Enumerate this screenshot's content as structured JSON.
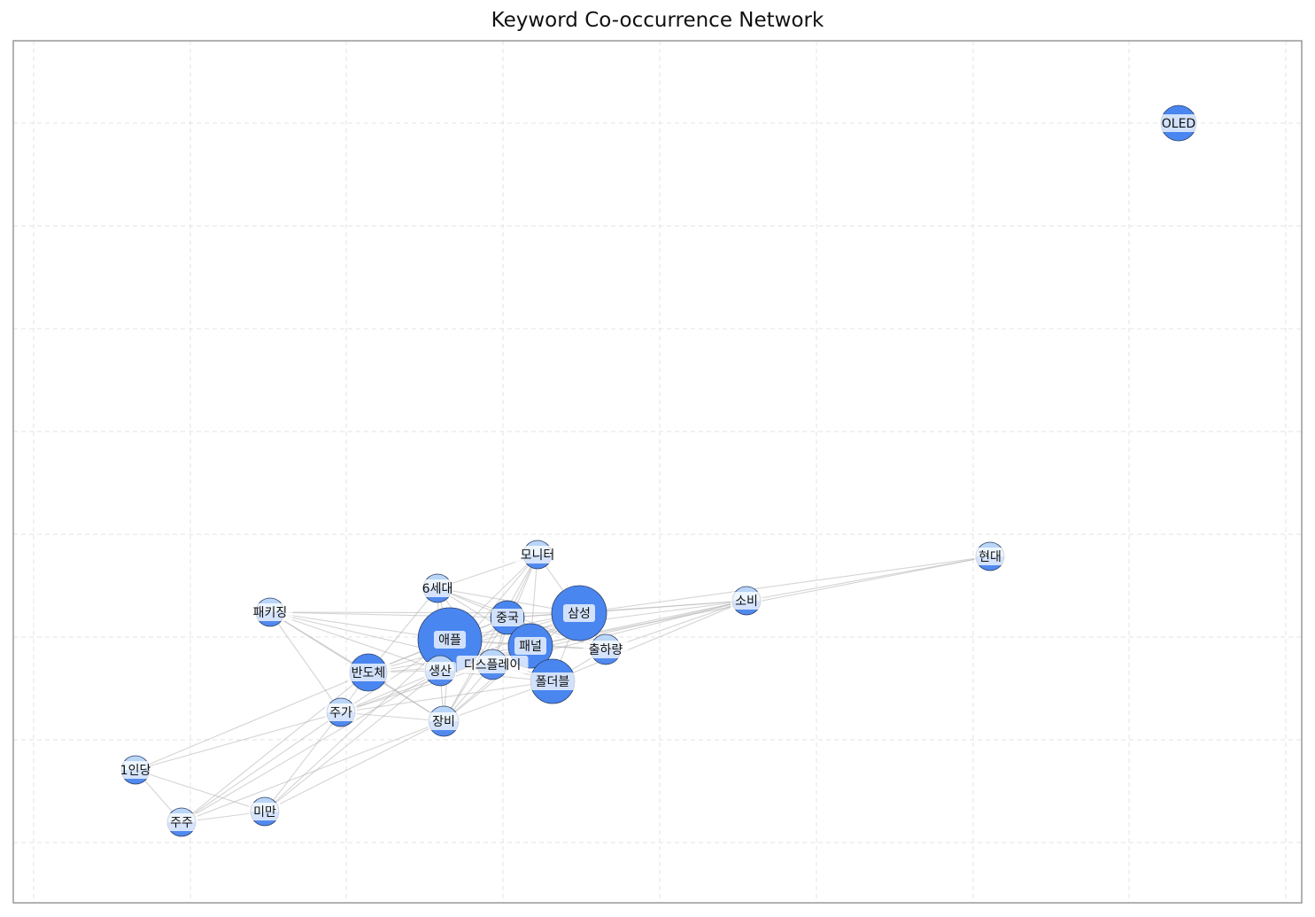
{
  "title": "Keyword Co-occurrence Network",
  "colors": {
    "edge": "#b0b0b0",
    "node_large": "#4a86f0",
    "node_small_top": "#aecdf5",
    "node_small_bottom": "#5b92ef",
    "node_stroke": "#2b3f66",
    "label_box": "#ffffff",
    "grid": "#e3e3e3",
    "frame": "#999999"
  },
  "nodes": [
    {
      "id": "OLED",
      "label": "OLED"
    },
    {
      "id": "현대",
      "label": "현대"
    },
    {
      "id": "소비",
      "label": "소비"
    },
    {
      "id": "모니터",
      "label": "모니터"
    },
    {
      "id": "6세대",
      "label": "6세대"
    },
    {
      "id": "삼성",
      "label": "삼성"
    },
    {
      "id": "중국",
      "label": "중국"
    },
    {
      "id": "패키징",
      "label": "패키징"
    },
    {
      "id": "애플",
      "label": "애플"
    },
    {
      "id": "패널",
      "label": "패널"
    },
    {
      "id": "출하량",
      "label": "출하량"
    },
    {
      "id": "디스플레이",
      "label": "디스플레이"
    },
    {
      "id": "반도체",
      "label": "반도체"
    },
    {
      "id": "생산",
      "label": "생산"
    },
    {
      "id": "폴더블",
      "label": "폴더블"
    },
    {
      "id": "주가",
      "label": "주가"
    },
    {
      "id": "장비",
      "label": "장비"
    },
    {
      "id": "1인당",
      "label": "1인당"
    },
    {
      "id": "미만",
      "label": "미만"
    },
    {
      "id": "주주",
      "label": "주주"
    }
  ],
  "edges": [
    [
      "현대",
      "소비"
    ],
    [
      "현대",
      "삼성"
    ],
    [
      "현대",
      "패널"
    ],
    [
      "소비",
      "삼성"
    ],
    [
      "소비",
      "애플"
    ],
    [
      "소비",
      "중국"
    ],
    [
      "소비",
      "패널"
    ],
    [
      "소비",
      "출하량"
    ],
    [
      "소비",
      "디스플레이"
    ],
    [
      "소비",
      "폴더블"
    ],
    [
      "소비",
      "생산"
    ],
    [
      "모니터",
      "6세대"
    ],
    [
      "모니터",
      "삼성"
    ],
    [
      "모니터",
      "중국"
    ],
    [
      "모니터",
      "애플"
    ],
    [
      "모니터",
      "패널"
    ],
    [
      "모니터",
      "디스플레이"
    ],
    [
      "모니터",
      "생산"
    ],
    [
      "모니터",
      "장비"
    ],
    [
      "6세대",
      "애플"
    ],
    [
      "6세대",
      "중국"
    ],
    [
      "6세대",
      "삼성"
    ],
    [
      "6세대",
      "패널"
    ],
    [
      "6세대",
      "반도체"
    ],
    [
      "6세대",
      "생산"
    ],
    [
      "6세대",
      "디스플레이"
    ],
    [
      "6세대",
      "출하량"
    ],
    [
      "패키징",
      "애플"
    ],
    [
      "패키징",
      "반도체"
    ],
    [
      "패키징",
      "생산"
    ],
    [
      "패키징",
      "주가"
    ],
    [
      "패키징",
      "장비"
    ],
    [
      "패키징",
      "중국"
    ],
    [
      "패키징",
      "디스플레이"
    ],
    [
      "패키징",
      "삼성"
    ],
    [
      "삼성",
      "애플"
    ],
    [
      "삼성",
      "중국"
    ],
    [
      "삼성",
      "패널"
    ],
    [
      "삼성",
      "출하량"
    ],
    [
      "삼성",
      "디스플레이"
    ],
    [
      "삼성",
      "폴더블"
    ],
    [
      "삼성",
      "생산"
    ],
    [
      "삼성",
      "반도체"
    ],
    [
      "삼성",
      "장비"
    ],
    [
      "애플",
      "중국"
    ],
    [
      "애플",
      "패널"
    ],
    [
      "애플",
      "디스플레이"
    ],
    [
      "애플",
      "생산"
    ],
    [
      "애플",
      "반도체"
    ],
    [
      "애플",
      "폴더블"
    ],
    [
      "애플",
      "출하량"
    ],
    [
      "애플",
      "장비"
    ],
    [
      "애플",
      "주가"
    ],
    [
      "중국",
      "패널"
    ],
    [
      "중국",
      "디스플레이"
    ],
    [
      "중국",
      "생산"
    ],
    [
      "중국",
      "폴더블"
    ],
    [
      "중국",
      "출하량"
    ],
    [
      "중국",
      "반도체"
    ],
    [
      "중국",
      "장비"
    ],
    [
      "패널",
      "디스플레이"
    ],
    [
      "패널",
      "생산"
    ],
    [
      "패널",
      "폴더블"
    ],
    [
      "패널",
      "출하량"
    ],
    [
      "패널",
      "반도체"
    ],
    [
      "패널",
      "장비"
    ],
    [
      "패널",
      "주가"
    ],
    [
      "디스플레이",
      "생산"
    ],
    [
      "디스플레이",
      "반도체"
    ],
    [
      "디스플레이",
      "장비"
    ],
    [
      "디스플레이",
      "폴더블"
    ],
    [
      "디스플레이",
      "주가"
    ],
    [
      "반도체",
      "생산"
    ],
    [
      "반도체",
      "주가"
    ],
    [
      "반도체",
      "장비"
    ],
    [
      "반도체",
      "1인당"
    ],
    [
      "반도체",
      "주주"
    ],
    [
      "생산",
      "장비"
    ],
    [
      "생산",
      "주가"
    ],
    [
      "생산",
      "폴더블"
    ],
    [
      "생산",
      "미만"
    ],
    [
      "폴더블",
      "출하량"
    ],
    [
      "폴더블",
      "장비"
    ],
    [
      "폴더블",
      "주가"
    ],
    [
      "주가",
      "장비"
    ],
    [
      "주가",
      "1인당"
    ],
    [
      "주가",
      "미만"
    ],
    [
      "주가",
      "주주"
    ],
    [
      "장비",
      "미만"
    ],
    [
      "장비",
      "주주"
    ],
    [
      "1인당",
      "미만"
    ],
    [
      "1인당",
      "주주"
    ],
    [
      "주주",
      "미만"
    ],
    [
      "미만",
      "애플"
    ],
    [
      "주주",
      "생산"
    ]
  ]
}
